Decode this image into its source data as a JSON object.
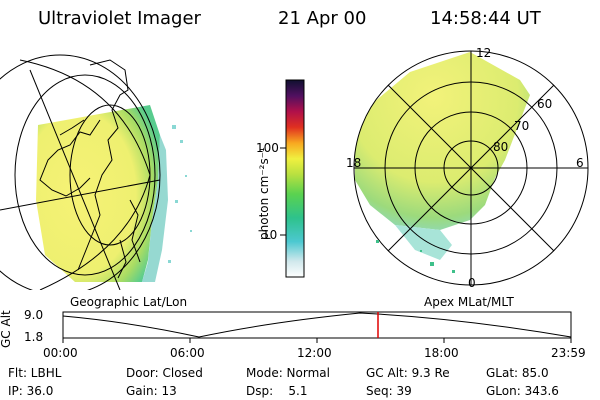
{
  "header": {
    "instrument": "Ultraviolet Imager",
    "date": "21 Apr 00",
    "time": "14:58:44 UT"
  },
  "colorbar": {
    "unit": "photon cm⁻²s⁻¹",
    "ticks": [
      "100",
      "10"
    ]
  },
  "polar_plot": {
    "labels": {
      "noon": "12",
      "dusk": "18",
      "dawn": "6",
      "midnight": "0"
    },
    "lat_labels": [
      "60",
      "70",
      "80"
    ]
  },
  "panels": {
    "left_caption": "Geographic Lat/Lon",
    "right_caption": "Apex MLat/MLT"
  },
  "altitude_plot": {
    "ylabel": "GC Alt",
    "yticks": [
      "9.0",
      "1.8"
    ],
    "xticks": [
      "00:00",
      "06:00",
      "12:00",
      "18:00",
      "23:59"
    ],
    "current_time_marker": "14:58"
  },
  "info": {
    "row1": [
      "Flt: LBHL",
      "Door: Closed",
      "Mode: Normal",
      "GC Alt: 9.3 Re",
      "GLat: 85.0"
    ],
    "row2": [
      "IP: 36.0",
      "Gain: 13",
      "Dsp:    5.1",
      "Seq: 39",
      "GLon: 343.6"
    ]
  },
  "colors": {
    "marker": "#e00000",
    "image_yellow": "#f4f07a",
    "image_green": "#7fd26e",
    "image_cyan": "#6fd6d2"
  }
}
